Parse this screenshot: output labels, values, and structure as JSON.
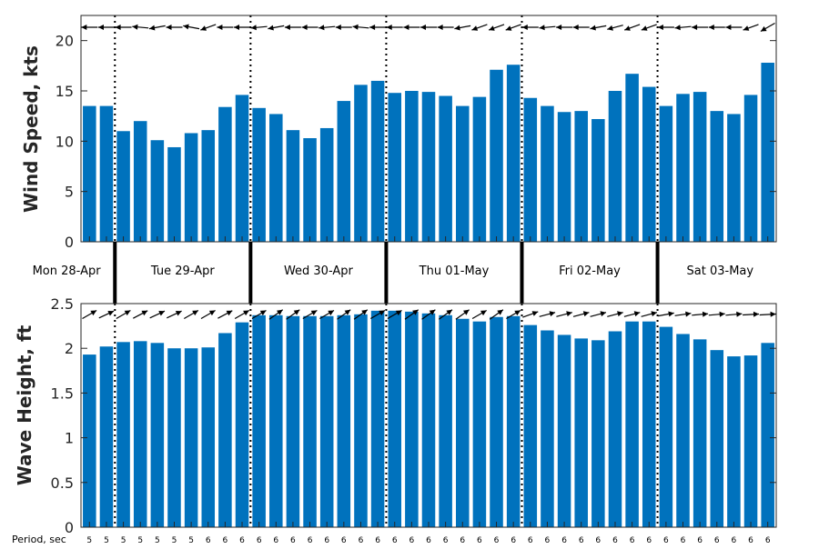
{
  "colors": {
    "bar": "#0072bd",
    "axis": "#262626",
    "arrow": "#000000"
  },
  "chart_data": [
    {
      "type": "bar",
      "ylabel": "Wind Speed, kts",
      "ylim": [
        0,
        22.5
      ],
      "yticks": [
        0,
        5,
        10,
        15,
        20
      ],
      "values": [
        13.5,
        13.5,
        11.0,
        12.0,
        10.1,
        9.4,
        10.8,
        11.1,
        13.4,
        14.6,
        13.3,
        12.7,
        11.1,
        10.3,
        11.3,
        14.0,
        15.6,
        16.0,
        14.8,
        15.0,
        14.9,
        14.5,
        13.5,
        14.4,
        17.1,
        17.6,
        14.3,
        13.5,
        12.9,
        13.0,
        12.2,
        15.0,
        16.7,
        15.4,
        13.5,
        14.7,
        14.9,
        13.0,
        12.7,
        14.6,
        17.8
      ],
      "arrow_angles_deg": [
        180,
        180,
        180,
        175,
        190,
        180,
        170,
        200,
        180,
        180,
        185,
        190,
        180,
        180,
        185,
        180,
        175,
        180,
        180,
        180,
        180,
        180,
        190,
        200,
        200,
        200,
        180,
        185,
        180,
        180,
        190,
        195,
        200,
        200,
        180,
        185,
        180,
        180,
        180,
        200,
        210
      ]
    },
    {
      "type": "bar",
      "ylabel": "Wave Height, ft",
      "ylim": [
        0,
        2.5
      ],
      "yticks": [
        "0",
        "0.5",
        "1",
        "1.5",
        "2",
        "2.5"
      ],
      "values": [
        1.93,
        2.02,
        2.07,
        2.08,
        2.06,
        2.0,
        2.0,
        2.01,
        2.17,
        2.29,
        2.37,
        2.37,
        2.36,
        2.36,
        2.36,
        2.37,
        2.38,
        2.42,
        2.42,
        2.41,
        2.39,
        2.37,
        2.33,
        2.3,
        2.35,
        2.36,
        2.26,
        2.2,
        2.15,
        2.11,
        2.09,
        2.19,
        2.3,
        2.3,
        2.24,
        2.16,
        2.1,
        1.98,
        1.91,
        1.92,
        2.06
      ],
      "arrow_angles_deg": [
        30,
        25,
        30,
        28,
        25,
        25,
        30,
        30,
        28,
        30,
        30,
        35,
        35,
        30,
        30,
        35,
        35,
        30,
        30,
        35,
        35,
        35,
        35,
        30,
        35,
        30,
        20,
        15,
        15,
        15,
        15,
        15,
        15,
        15,
        10,
        8,
        5,
        5,
        5,
        3,
        3
      ]
    }
  ],
  "days": [
    "Mon 28-Apr",
    "Tue 29-Apr",
    "Wed 30-Apr",
    "Thu 01-May",
    "Fri 02-May",
    "Sat 03-May"
  ],
  "day_start_index": [
    0,
    2,
    10,
    18,
    26,
    34
  ],
  "period": {
    "label": "Period, sec",
    "values": [
      "5",
      "5",
      "5",
      "5",
      "5",
      "5",
      "5",
      "6",
      "6",
      "6",
      "6",
      "6",
      "6",
      "6",
      "6",
      "6",
      "6",
      "6",
      "6",
      "6",
      "6",
      "6",
      "6",
      "6",
      "6",
      "6",
      "6",
      "6",
      "6",
      "6",
      "6",
      "6",
      "6",
      "6",
      "6",
      "6",
      "6",
      "6",
      "6",
      "6",
      "6"
    ]
  }
}
